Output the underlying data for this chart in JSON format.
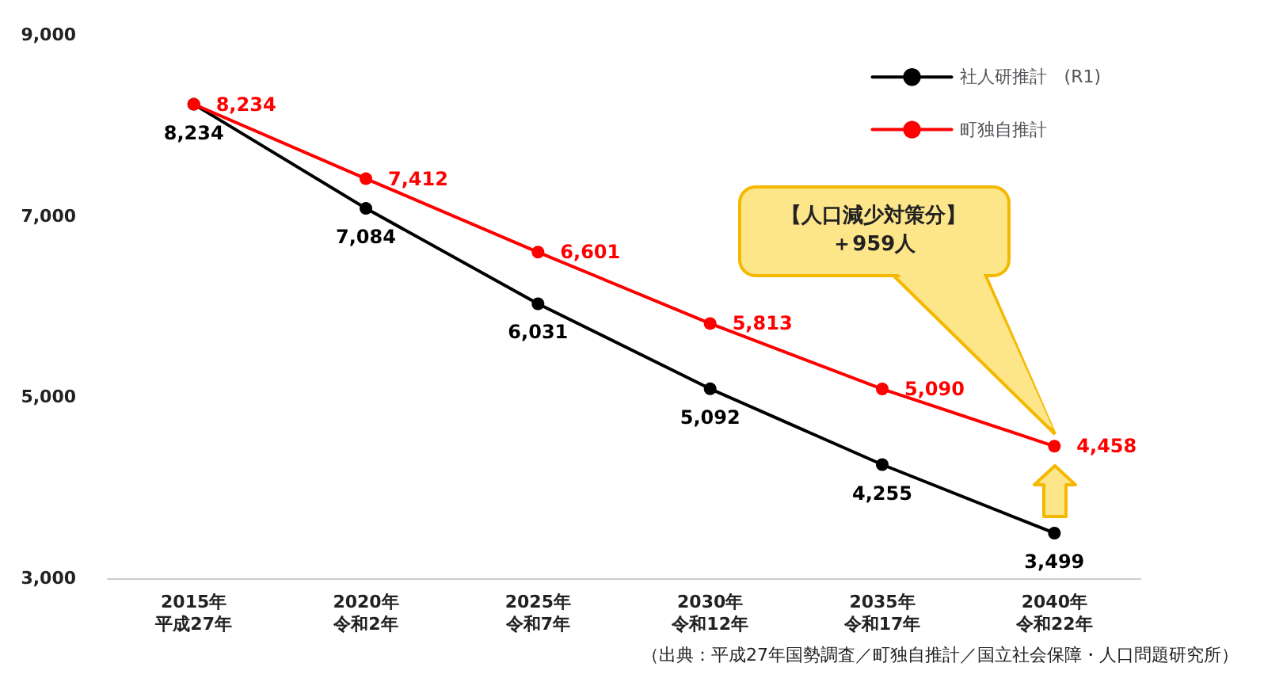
{
  "chart_data": {
    "type": "line",
    "categories": [
      "2015年平成27年",
      "2020年令和2年",
      "2025年令和7年",
      "2030年令和12年",
      "2035年令和17年",
      "2040年令和22年"
    ],
    "series": [
      {
        "name": "社人研推計　(R1)",
        "color": "#000000",
        "values": [
          8234,
          7084,
          6031,
          5092,
          4255,
          3499
        ],
        "value_labels": [
          "8,234",
          "7,084",
          "6,031",
          "5,092",
          "4,255",
          "3,499"
        ]
      },
      {
        "name": "町独自推計",
        "color": "#ff0000",
        "values": [
          8234,
          7412,
          6601,
          5813,
          5090,
          4458
        ],
        "value_labels": [
          "8,234",
          "7,412",
          "6,601",
          "5,813",
          "5,090",
          "4,458"
        ]
      }
    ],
    "ylim": [
      3000,
      9000
    ],
    "yticks": [
      {
        "value": 3000,
        "label": "3,000"
      },
      {
        "value": 5000,
        "label": "5,000"
      },
      {
        "value": 7000,
        "label": "7,000"
      },
      {
        "value": 9000,
        "label": "9,000"
      }
    ],
    "grid": false,
    "legend": "top right",
    "marker": "circle",
    "line_style": "solid",
    "annotations": [
      "【人口減少対策分】＋959人",
      "（出典：平成27年国勢調査／町独自推計／国立社会保障・人口問題研究所）"
    ]
  }
}
